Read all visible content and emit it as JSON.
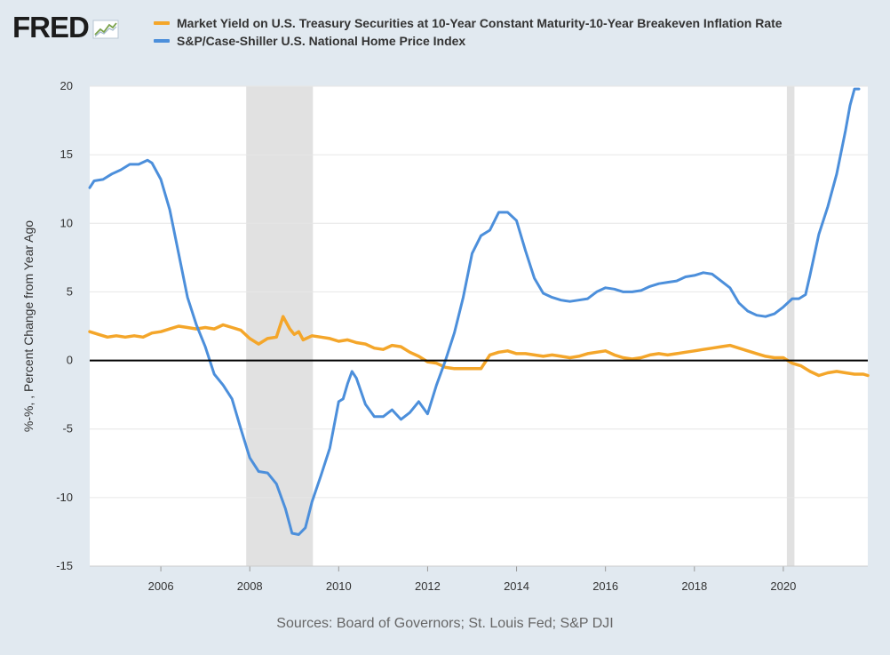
{
  "header": {
    "logo_text": "FRED",
    "logo_icon": "chart-trend-icon"
  },
  "colors": {
    "background": "#e1e9f0",
    "plot_bg": "#ffffff",
    "series_orange": "#f4a62a",
    "series_blue": "#4c8fdb",
    "recession": "#e1e1e1",
    "zero_line": "#000000"
  },
  "source_text": "Sources: Board of Governors; St. Louis Fed; S&P DJI",
  "chart_data": {
    "type": "line",
    "title": "",
    "xlabel": "",
    "ylabel": "%-%, , Percent Change from Year Ago",
    "xlim": [
      2004.4,
      2021.9
    ],
    "ylim": [
      -15,
      20
    ],
    "x_ticks": [
      2006,
      2008,
      2010,
      2012,
      2014,
      2016,
      2018,
      2020
    ],
    "x_tick_labels": [
      "2006",
      "2008",
      "2010",
      "2012",
      "2014",
      "2016",
      "2018",
      "2020"
    ],
    "y_ticks": [
      -15,
      -10,
      -5,
      0,
      5,
      10,
      15,
      20
    ],
    "y_tick_labels": [
      "-15",
      "-10",
      "-5",
      "0",
      "5",
      "10",
      "15",
      "20"
    ],
    "grid": "horizontal",
    "legend_position": "top",
    "zero_line": true,
    "recessions": [
      [
        2007.92,
        2009.42
      ],
      [
        2020.08,
        2020.25
      ]
    ],
    "series": [
      {
        "name": "Market Yield on U.S. Treasury Securities at 10-Year Constant Maturity-10-Year Breakeven Inflation Rate",
        "color": "#f4a62a",
        "points": [
          [
            2004.4,
            2.1
          ],
          [
            2004.6,
            1.9
          ],
          [
            2004.8,
            1.7
          ],
          [
            2005.0,
            1.8
          ],
          [
            2005.2,
            1.7
          ],
          [
            2005.4,
            1.8
          ],
          [
            2005.6,
            1.7
          ],
          [
            2005.8,
            2.0
          ],
          [
            2006.0,
            2.1
          ],
          [
            2006.2,
            2.3
          ],
          [
            2006.4,
            2.5
          ],
          [
            2006.6,
            2.4
          ],
          [
            2006.8,
            2.3
          ],
          [
            2007.0,
            2.4
          ],
          [
            2007.2,
            2.3
          ],
          [
            2007.4,
            2.6
          ],
          [
            2007.6,
            2.4
          ],
          [
            2007.8,
            2.2
          ],
          [
            2008.0,
            1.6
          ],
          [
            2008.2,
            1.2
          ],
          [
            2008.4,
            1.6
          ],
          [
            2008.6,
            1.7
          ],
          [
            2008.75,
            3.2
          ],
          [
            2008.9,
            2.3
          ],
          [
            2009.0,
            1.9
          ],
          [
            2009.1,
            2.1
          ],
          [
            2009.2,
            1.5
          ],
          [
            2009.4,
            1.8
          ],
          [
            2009.6,
            1.7
          ],
          [
            2009.8,
            1.6
          ],
          [
            2010.0,
            1.4
          ],
          [
            2010.2,
            1.5
          ],
          [
            2010.4,
            1.3
          ],
          [
            2010.6,
            1.2
          ],
          [
            2010.8,
            0.9
          ],
          [
            2011.0,
            0.8
          ],
          [
            2011.2,
            1.1
          ],
          [
            2011.4,
            1.0
          ],
          [
            2011.6,
            0.6
          ],
          [
            2011.8,
            0.3
          ],
          [
            2012.0,
            -0.1
          ],
          [
            2012.2,
            -0.2
          ],
          [
            2012.4,
            -0.5
          ],
          [
            2012.6,
            -0.6
          ],
          [
            2012.8,
            -0.6
          ],
          [
            2013.0,
            -0.6
          ],
          [
            2013.2,
            -0.6
          ],
          [
            2013.4,
            0.4
          ],
          [
            2013.6,
            0.6
          ],
          [
            2013.8,
            0.7
          ],
          [
            2014.0,
            0.5
          ],
          [
            2014.2,
            0.5
          ],
          [
            2014.4,
            0.4
          ],
          [
            2014.6,
            0.3
          ],
          [
            2014.8,
            0.4
          ],
          [
            2015.0,
            0.3
          ],
          [
            2015.2,
            0.2
          ],
          [
            2015.4,
            0.3
          ],
          [
            2015.6,
            0.5
          ],
          [
            2015.8,
            0.6
          ],
          [
            2016.0,
            0.7
          ],
          [
            2016.2,
            0.4
          ],
          [
            2016.4,
            0.2
          ],
          [
            2016.6,
            0.1
          ],
          [
            2016.8,
            0.2
          ],
          [
            2017.0,
            0.4
          ],
          [
            2017.2,
            0.5
          ],
          [
            2017.4,
            0.4
          ],
          [
            2017.6,
            0.5
          ],
          [
            2017.8,
            0.6
          ],
          [
            2018.0,
            0.7
          ],
          [
            2018.2,
            0.8
          ],
          [
            2018.4,
            0.9
          ],
          [
            2018.6,
            1.0
          ],
          [
            2018.8,
            1.1
          ],
          [
            2019.0,
            0.9
          ],
          [
            2019.2,
            0.7
          ],
          [
            2019.4,
            0.5
          ],
          [
            2019.6,
            0.3
          ],
          [
            2019.8,
            0.2
          ],
          [
            2020.0,
            0.2
          ],
          [
            2020.2,
            -0.2
          ],
          [
            2020.4,
            -0.4
          ],
          [
            2020.6,
            -0.8
          ],
          [
            2020.8,
            -1.1
          ],
          [
            2021.0,
            -0.9
          ],
          [
            2021.2,
            -0.8
          ],
          [
            2021.4,
            -0.9
          ],
          [
            2021.6,
            -1.0
          ],
          [
            2021.8,
            -1.0
          ],
          [
            2021.9,
            -1.1
          ]
        ]
      },
      {
        "name": "S&P/Case-Shiller U.S. National Home Price Index",
        "color": "#4c8fdb",
        "points": [
          [
            2004.4,
            12.6
          ],
          [
            2004.5,
            13.1
          ],
          [
            2004.7,
            13.2
          ],
          [
            2004.9,
            13.6
          ],
          [
            2005.1,
            13.9
          ],
          [
            2005.3,
            14.3
          ],
          [
            2005.5,
            14.3
          ],
          [
            2005.7,
            14.6
          ],
          [
            2005.8,
            14.4
          ],
          [
            2006.0,
            13.2
          ],
          [
            2006.2,
            11.0
          ],
          [
            2006.4,
            7.8
          ],
          [
            2006.6,
            4.6
          ],
          [
            2006.8,
            2.6
          ],
          [
            2007.0,
            1.0
          ],
          [
            2007.2,
            -1.0
          ],
          [
            2007.4,
            -1.8
          ],
          [
            2007.6,
            -2.8
          ],
          [
            2007.8,
            -5.0
          ],
          [
            2008.0,
            -7.1
          ],
          [
            2008.2,
            -8.1
          ],
          [
            2008.4,
            -8.2
          ],
          [
            2008.6,
            -9.0
          ],
          [
            2008.8,
            -10.8
          ],
          [
            2008.95,
            -12.6
          ],
          [
            2009.1,
            -12.7
          ],
          [
            2009.25,
            -12.2
          ],
          [
            2009.4,
            -10.3
          ],
          [
            2009.6,
            -8.4
          ],
          [
            2009.8,
            -6.4
          ],
          [
            2010.0,
            -3.0
          ],
          [
            2010.1,
            -2.8
          ],
          [
            2010.2,
            -1.7
          ],
          [
            2010.3,
            -0.8
          ],
          [
            2010.4,
            -1.3
          ],
          [
            2010.6,
            -3.2
          ],
          [
            2010.8,
            -4.1
          ],
          [
            2011.0,
            -4.1
          ],
          [
            2011.2,
            -3.6
          ],
          [
            2011.4,
            -4.3
          ],
          [
            2011.6,
            -3.8
          ],
          [
            2011.8,
            -3.0
          ],
          [
            2012.0,
            -3.9
          ],
          [
            2012.2,
            -1.8
          ],
          [
            2012.4,
            0.0
          ],
          [
            2012.6,
            2.0
          ],
          [
            2012.8,
            4.6
          ],
          [
            2013.0,
            7.8
          ],
          [
            2013.2,
            9.1
          ],
          [
            2013.4,
            9.5
          ],
          [
            2013.6,
            10.8
          ],
          [
            2013.8,
            10.8
          ],
          [
            2014.0,
            10.2
          ],
          [
            2014.2,
            8.0
          ],
          [
            2014.4,
            6.0
          ],
          [
            2014.6,
            4.9
          ],
          [
            2014.8,
            4.6
          ],
          [
            2015.0,
            4.4
          ],
          [
            2015.2,
            4.3
          ],
          [
            2015.4,
            4.4
          ],
          [
            2015.6,
            4.5
          ],
          [
            2015.8,
            5.0
          ],
          [
            2016.0,
            5.3
          ],
          [
            2016.2,
            5.2
          ],
          [
            2016.4,
            5.0
          ],
          [
            2016.6,
            5.0
          ],
          [
            2016.8,
            5.1
          ],
          [
            2017.0,
            5.4
          ],
          [
            2017.2,
            5.6
          ],
          [
            2017.4,
            5.7
          ],
          [
            2017.6,
            5.8
          ],
          [
            2017.8,
            6.1
          ],
          [
            2018.0,
            6.2
          ],
          [
            2018.2,
            6.4
          ],
          [
            2018.4,
            6.3
          ],
          [
            2018.6,
            5.8
          ],
          [
            2018.8,
            5.3
          ],
          [
            2019.0,
            4.2
          ],
          [
            2019.2,
            3.6
          ],
          [
            2019.4,
            3.3
          ],
          [
            2019.6,
            3.2
          ],
          [
            2019.8,
            3.4
          ],
          [
            2020.0,
            3.9
          ],
          [
            2020.2,
            4.5
          ],
          [
            2020.35,
            4.5
          ],
          [
            2020.5,
            4.8
          ],
          [
            2020.6,
            6.2
          ],
          [
            2020.8,
            9.2
          ],
          [
            2021.0,
            11.2
          ],
          [
            2021.2,
            13.6
          ],
          [
            2021.4,
            16.8
          ],
          [
            2021.5,
            18.6
          ],
          [
            2021.6,
            19.8
          ],
          [
            2021.7,
            19.8
          ]
        ]
      }
    ]
  }
}
